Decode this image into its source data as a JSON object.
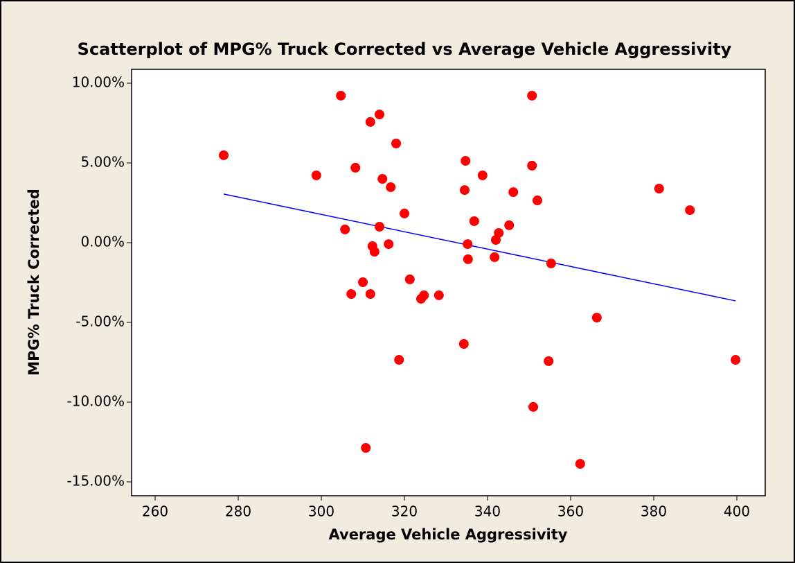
{
  "chart_data": {
    "type": "scatter",
    "title": "Scatterplot of MPG% Truck Corrected vs Average Vehicle Aggressivity",
    "x_label": "Average Vehicle Aggressivity",
    "y_label": "MPG% Truck Corrected",
    "color": "#ff0000",
    "xlim": [
      254.33,
      406.83
    ],
    "ylim": [
      -15.87,
      10.87
    ],
    "xticks": [
      260,
      280,
      300,
      320,
      340,
      360,
      380,
      400
    ],
    "yticks": [
      {
        "value": 10,
        "label": "10.00%"
      },
      {
        "value": 5,
        "label": "5.00%"
      },
      {
        "value": 0,
        "label": "0.00%"
      },
      {
        "value": -5,
        "label": "-5.00%"
      },
      {
        "value": -10,
        "label": "-10.00%"
      },
      {
        "value": -15,
        "label": "-15.00%"
      }
    ],
    "x": [
      276.5,
      298.8,
      304.7,
      305.7,
      307.2,
      308.2,
      310.0,
      310.7,
      311.8,
      311.8,
      312.3,
      312.8,
      314.0,
      314.0,
      314.7,
      316.2,
      316.7,
      318.0,
      318.7,
      320.0,
      321.3,
      324.0,
      324.7,
      328.3,
      334.3,
      334.5,
      334.7,
      335.2,
      335.3,
      336.8,
      338.8,
      341.7,
      342.0,
      342.7,
      345.2,
      346.2,
      350.7,
      350.7,
      351.0,
      352.0,
      354.7,
      355.3,
      362.3,
      366.3,
      381.3,
      388.7,
      399.7
    ],
    "values": [
      5.48,
      4.22,
      9.22,
      0.83,
      -3.22,
      4.7,
      -2.48,
      -12.87,
      7.57,
      -3.22,
      -0.22,
      -0.57,
      8.04,
      1.0,
      4.0,
      -0.09,
      3.48,
      6.22,
      -7.35,
      1.83,
      -2.3,
      -3.52,
      -3.3,
      -3.3,
      -6.35,
      3.3,
      5.13,
      -0.09,
      -1.04,
      1.35,
      4.22,
      -0.91,
      0.17,
      0.61,
      1.09,
      3.17,
      9.22,
      4.83,
      -10.3,
      2.65,
      -7.43,
      -1.3,
      -13.87,
      -4.7,
      3.39,
      2.04,
      -7.35
    ],
    "fit_line": {
      "x": [
        276.5,
        399.7
      ],
      "y": [
        3.05,
        -3.65
      ],
      "color": "#0000ff"
    }
  }
}
